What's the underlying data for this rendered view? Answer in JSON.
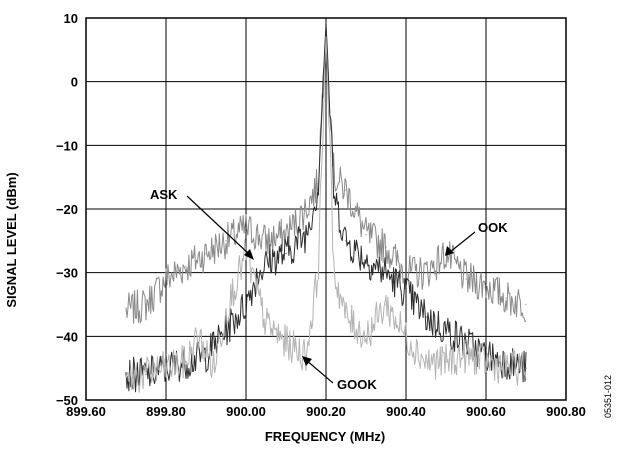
{
  "chart_data": {
    "type": "line",
    "title": "",
    "xlabel": "FREQUENCY (MHz)",
    "ylabel": "SIGNAL LEVEL (dBm)",
    "xlim": [
      899.6,
      900.8
    ],
    "ylim": [
      -50,
      10
    ],
    "x_ticks": [
      "899.60",
      "899.80",
      "900.00",
      "900.20",
      "900.40",
      "900.60",
      "900.80"
    ],
    "y_ticks": [
      "10",
      "0",
      "−10",
      "−20",
      "−30",
      "−40",
      "−50"
    ],
    "grid": true,
    "series": [
      {
        "name": "OOK",
        "color": "#8a8a8a",
        "x": [
          899.7,
          899.75,
          899.8,
          899.85,
          899.9,
          899.95,
          900.0,
          900.05,
          900.1,
          900.15,
          900.18,
          900.2,
          900.22,
          900.25,
          900.3,
          900.35,
          900.4,
          900.45,
          900.5,
          900.55,
          900.6,
          900.65,
          900.7
        ],
        "y": [
          -36,
          -35,
          -31,
          -29,
          -27,
          -25,
          -23,
          -25,
          -24,
          -20,
          -16,
          9,
          -15,
          -17,
          -24,
          -26,
          -30,
          -30,
          -27,
          -31,
          -32,
          -34,
          -35
        ]
      },
      {
        "name": "ASK",
        "color": "#2e2e2e",
        "x": [
          899.7,
          899.75,
          899.8,
          899.85,
          899.9,
          899.95,
          900.0,
          900.03,
          900.06,
          900.1,
          900.15,
          900.18,
          900.2,
          900.22,
          900.25,
          900.3,
          900.35,
          900.4,
          900.45,
          900.5,
          900.55,
          900.6,
          900.65,
          900.7
        ],
        "y": [
          -46,
          -46,
          -45,
          -44,
          -43,
          -39,
          -35,
          -30,
          -28,
          -27,
          -24,
          -17,
          9,
          -18,
          -25,
          -28,
          -30,
          -33,
          -37,
          -39,
          -41,
          -43,
          -44,
          -45
        ]
      },
      {
        "name": "GOOK",
        "color": "#b4b4b4",
        "x": [
          899.7,
          899.75,
          899.8,
          899.85,
          899.88,
          899.92,
          899.95,
          900.0,
          900.05,
          900.1,
          900.15,
          900.18,
          900.2,
          900.22,
          900.25,
          900.3,
          900.35,
          900.4,
          900.45,
          900.5,
          900.55,
          900.6,
          900.65,
          900.7
        ],
        "y": [
          -47,
          -46,
          -45,
          -44,
          -40,
          -45,
          -36,
          -27,
          -38,
          -41,
          -43,
          -30,
          7,
          -30,
          -37,
          -40,
          -35,
          -40,
          -44,
          -44,
          -43,
          -44,
          -45,
          -45
        ]
      }
    ],
    "annotations": [
      {
        "text": "ASK"
      },
      {
        "text": "OOK"
      },
      {
        "text": "GOOK"
      }
    ],
    "figure_id": "05351-012"
  }
}
